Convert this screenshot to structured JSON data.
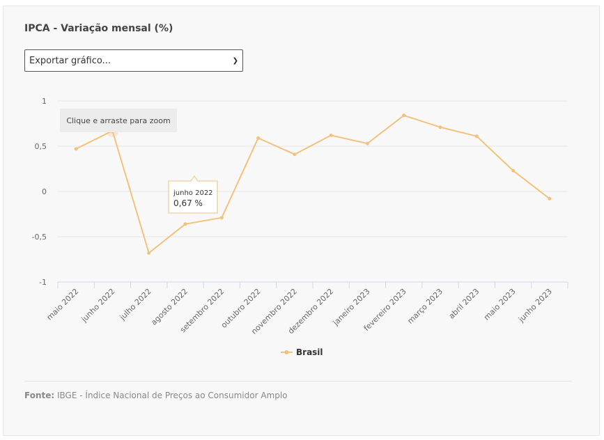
{
  "header": {
    "title": "IPCA - Variação mensal (%)",
    "export_label": "Exportar gráfico..."
  },
  "zoom_hint": "Clique e arraste para zoom",
  "tooltip": {
    "period": "junho 2022",
    "value": "0,67 %"
  },
  "footer": {
    "source_label": "Fonte:",
    "source_text": "IBGE - Índice Nacional de Preços ao Consumidor Amplo"
  },
  "colors": {
    "series": "#f2c27d",
    "grid": "#e6e6e6",
    "axis": "#ccd6eb",
    "tick_text": "#666666"
  },
  "chart_data": {
    "type": "line",
    "title": "IPCA - Variação mensal (%)",
    "categories": [
      "maio 2022",
      "junho 2022",
      "julho 2022",
      "agosto 2022",
      "setembro 2022",
      "outubro 2022",
      "novembro 2022",
      "dezembro 2022",
      "janeiro 2023",
      "fevereiro 2023",
      "março 2023",
      "abril 2023",
      "maio 2023",
      "junho 2023"
    ],
    "series": [
      {
        "name": "Brasil",
        "values": [
          0.47,
          0.67,
          -0.68,
          -0.36,
          -0.29,
          0.59,
          0.41,
          0.62,
          0.53,
          0.84,
          0.71,
          0.61,
          0.23,
          -0.08
        ]
      }
    ],
    "ylim": [
      -1,
      1
    ],
    "yticks": [
      {
        "value": 1,
        "label": "1"
      },
      {
        "value": 0.5,
        "label": "0,5"
      },
      {
        "value": 0,
        "label": "0"
      },
      {
        "value": -0.5,
        "label": "-0,5"
      },
      {
        "value": -1,
        "label": "-1"
      }
    ],
    "grid": true,
    "legend": "bottom-center",
    "highlighted_index": 1
  }
}
